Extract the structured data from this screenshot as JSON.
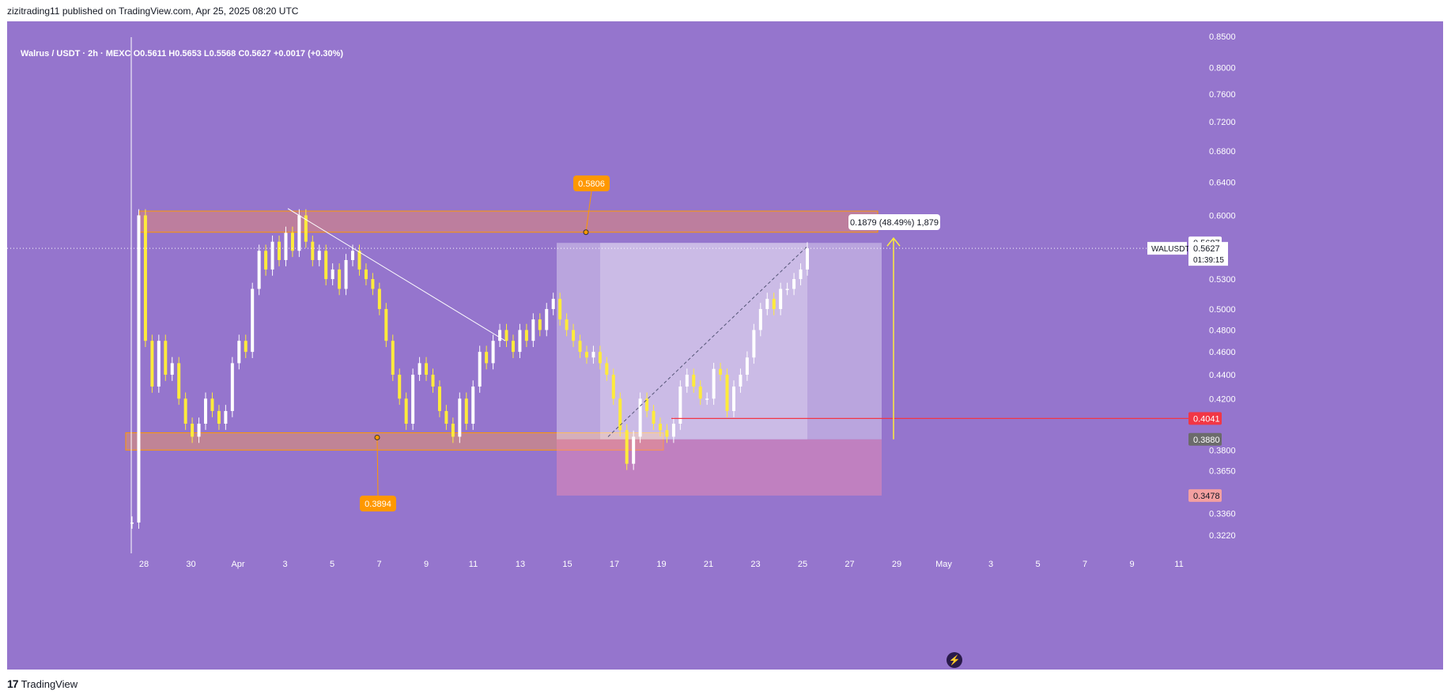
{
  "header": {
    "published": "zizitrading11 published on TradingView.com, Apr 25, 2025 08:20 UTC"
  },
  "symbol_line": "Walrus / USDT · 2h · MEXC  O0.5611  H0.5653  L0.5568  C0.5627  +0.0017 (+0.30%)",
  "footer": {
    "brand": "TradingView"
  },
  "colors": {
    "background": "#9575cd",
    "candle": "#ffeb3b",
    "resistance_zone": "#d9837f",
    "support_zone": "#e4906a",
    "target_line": "#ffeb3b",
    "price_line_red": "#f23645",
    "label_orange": "#ff9800"
  },
  "icons": [
    "lightning-icon",
    "tradingview-logo-icon"
  ],
  "chart_data": {
    "type": "candlestick",
    "title": "",
    "y_axis": {
      "scale": "log",
      "ticks": [
        0.85,
        0.8,
        0.76,
        0.72,
        0.68,
        0.64,
        0.6,
        0.53,
        0.5,
        0.48,
        0.46,
        0.44,
        0.42,
        0.38,
        0.365,
        0.336,
        0.322
      ],
      "tick_labels": [
        "0.8500",
        "0.8000",
        "0.7600",
        "0.7200",
        "0.6800",
        "0.6400",
        "0.6000",
        "0.5300",
        "0.5000",
        "0.4800",
        "0.4600",
        "0.4400",
        "0.4200",
        "0.3800",
        "0.3650",
        "0.3360",
        "0.3220"
      ]
    },
    "x_axis": {
      "tick_labels": [
        "28",
        "30",
        "Apr",
        "3",
        "5",
        "7",
        "9",
        "11",
        "13",
        "15",
        "17",
        "19",
        "21",
        "23",
        "25",
        "27",
        "29",
        "May",
        "3",
        "5",
        "7",
        "9",
        "11"
      ]
    },
    "price_markers": [
      {
        "label": "WALUSDT",
        "value": "0.5627",
        "countdown": "01:39:15"
      },
      {
        "value": "0.5687"
      },
      {
        "value": "0.4041"
      },
      {
        "value": "0.3880"
      },
      {
        "value": "0.3478"
      }
    ],
    "callouts": [
      {
        "text": "0.5806"
      },
      {
        "text": "0.3894"
      },
      {
        "text": "0.1879 (48.49%) 1,879"
      }
    ],
    "resistance_zone": [
      0.5806,
      0.605
    ],
    "support_zone": [
      0.38,
      0.393
    ],
    "series": [
      {
        "values": [
          0.33,
          0.6,
          0.47,
          0.43,
          0.47,
          0.44,
          0.45,
          0.42,
          0.4,
          0.39,
          0.4,
          0.42,
          0.41,
          0.4,
          0.41,
          0.45,
          0.47,
          0.46,
          0.52,
          0.56,
          0.54,
          0.57,
          0.55,
          0.58,
          0.56,
          0.6,
          0.57,
          0.55,
          0.56,
          0.53,
          0.54,
          0.52,
          0.55,
          0.56,
          0.54,
          0.53,
          0.52,
          0.5,
          0.47,
          0.44,
          0.42,
          0.4,
          0.44,
          0.45,
          0.44,
          0.43,
          0.41,
          0.4,
          0.39,
          0.42,
          0.4,
          0.43,
          0.46,
          0.45,
          0.47,
          0.48,
          0.47,
          0.46,
          0.48,
          0.47,
          0.49,
          0.48,
          0.5,
          0.51,
          0.49,
          0.48,
          0.47,
          0.46,
          0.455,
          0.46,
          0.45,
          0.44,
          0.42,
          0.395,
          0.37,
          0.39,
          0.42,
          0.41,
          0.4,
          0.395,
          0.39,
          0.4,
          0.43,
          0.44,
          0.43,
          0.42,
          0.42,
          0.445,
          0.44,
          0.41,
          0.43,
          0.44,
          0.455,
          0.48,
          0.5,
          0.51,
          0.5,
          0.52,
          0.52,
          0.53,
          0.54,
          0.5627
        ]
      }
    ]
  }
}
